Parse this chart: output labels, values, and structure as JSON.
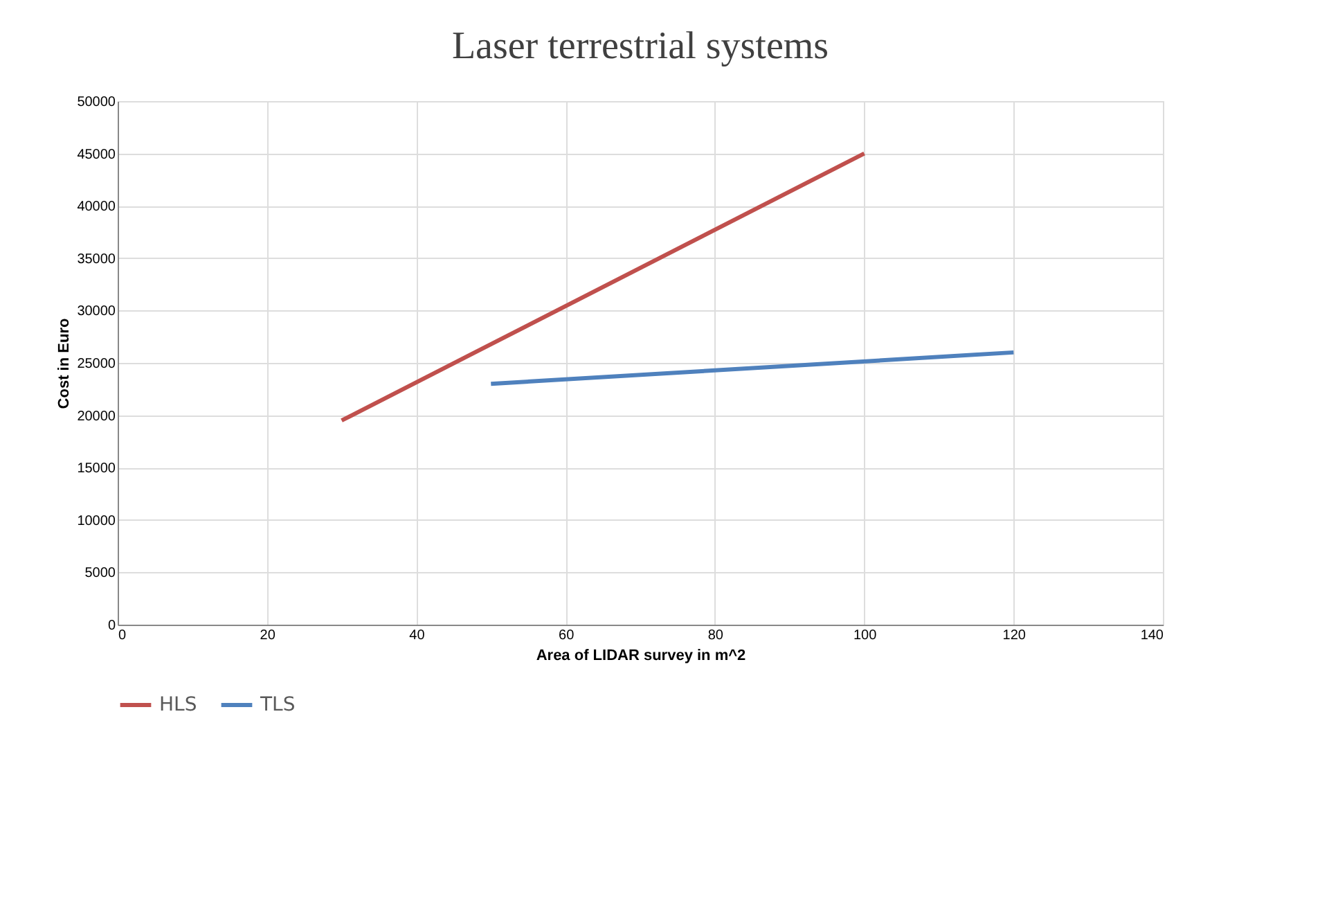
{
  "chart_data": {
    "type": "line",
    "title": "Laser terrestrial systems",
    "xlabel": "Area of LIDAR survey in m^2",
    "ylabel": "Cost in Euro",
    "series": [
      {
        "name": "HLS",
        "color": "#c0504d",
        "x": [
          30,
          100
        ],
        "values": [
          19500,
          45000
        ]
      },
      {
        "name": "TLS",
        "color": "#4f81bd",
        "x": [
          50,
          120
        ],
        "values": [
          23000,
          26000
        ]
      }
    ],
    "xlim": [
      0,
      140
    ],
    "xticks": [
      0,
      20,
      40,
      60,
      80,
      100,
      120,
      140
    ],
    "ylim": [
      0,
      50000
    ],
    "yticks": [
      0,
      5000,
      10000,
      15000,
      20000,
      25000,
      30000,
      35000,
      40000,
      45000,
      50000
    ],
    "grid": true,
    "legend": "bottom",
    "marker": "none",
    "line_style": "solid"
  }
}
